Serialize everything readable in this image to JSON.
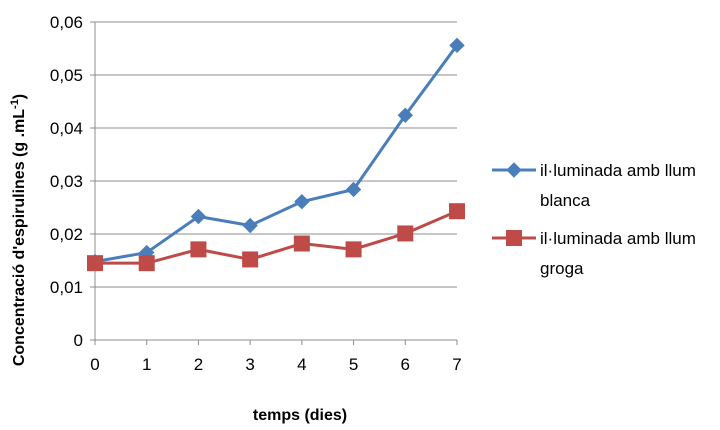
{
  "chart_data": {
    "type": "line",
    "title": "",
    "xlabel": "temps (dies)",
    "ylabel_main": "Concentració d'espirulines (g .mL",
    "ylabel_sup": "-1",
    "ylabel_end": ")",
    "x": [
      0,
      1,
      2,
      3,
      4,
      5,
      6,
      7
    ],
    "x_tick_labels": [
      "0",
      "1",
      "2",
      "3",
      "4",
      "5",
      "6",
      "7"
    ],
    "y_ticks": [
      0,
      0.01,
      0.02,
      0.03,
      0.04,
      0.05,
      0.06
    ],
    "y_tick_labels": [
      "0",
      "0,01",
      "0,02",
      "0,03",
      "0,04",
      "0,05",
      "0,06"
    ],
    "ylim": [
      0,
      0.06
    ],
    "xlim": [
      0,
      7
    ],
    "grid": "horizontal",
    "legend_position": "right",
    "series": [
      {
        "name_lines": [
          "il·luminada amb llum",
          "blanca"
        ],
        "color": "#4a7ebb",
        "marker": "diamond",
        "values": [
          0.0148,
          0.0165,
          0.0233,
          0.0216,
          0.0261,
          0.0284,
          0.0424,
          0.0556
        ]
      },
      {
        "name_lines": [
          "il·luminada amb llum",
          "groga"
        ],
        "color": "#be4b48",
        "marker": "square",
        "values": [
          0.0145,
          0.0145,
          0.0171,
          0.0152,
          0.0182,
          0.0171,
          0.0201,
          0.0243
        ]
      }
    ]
  }
}
